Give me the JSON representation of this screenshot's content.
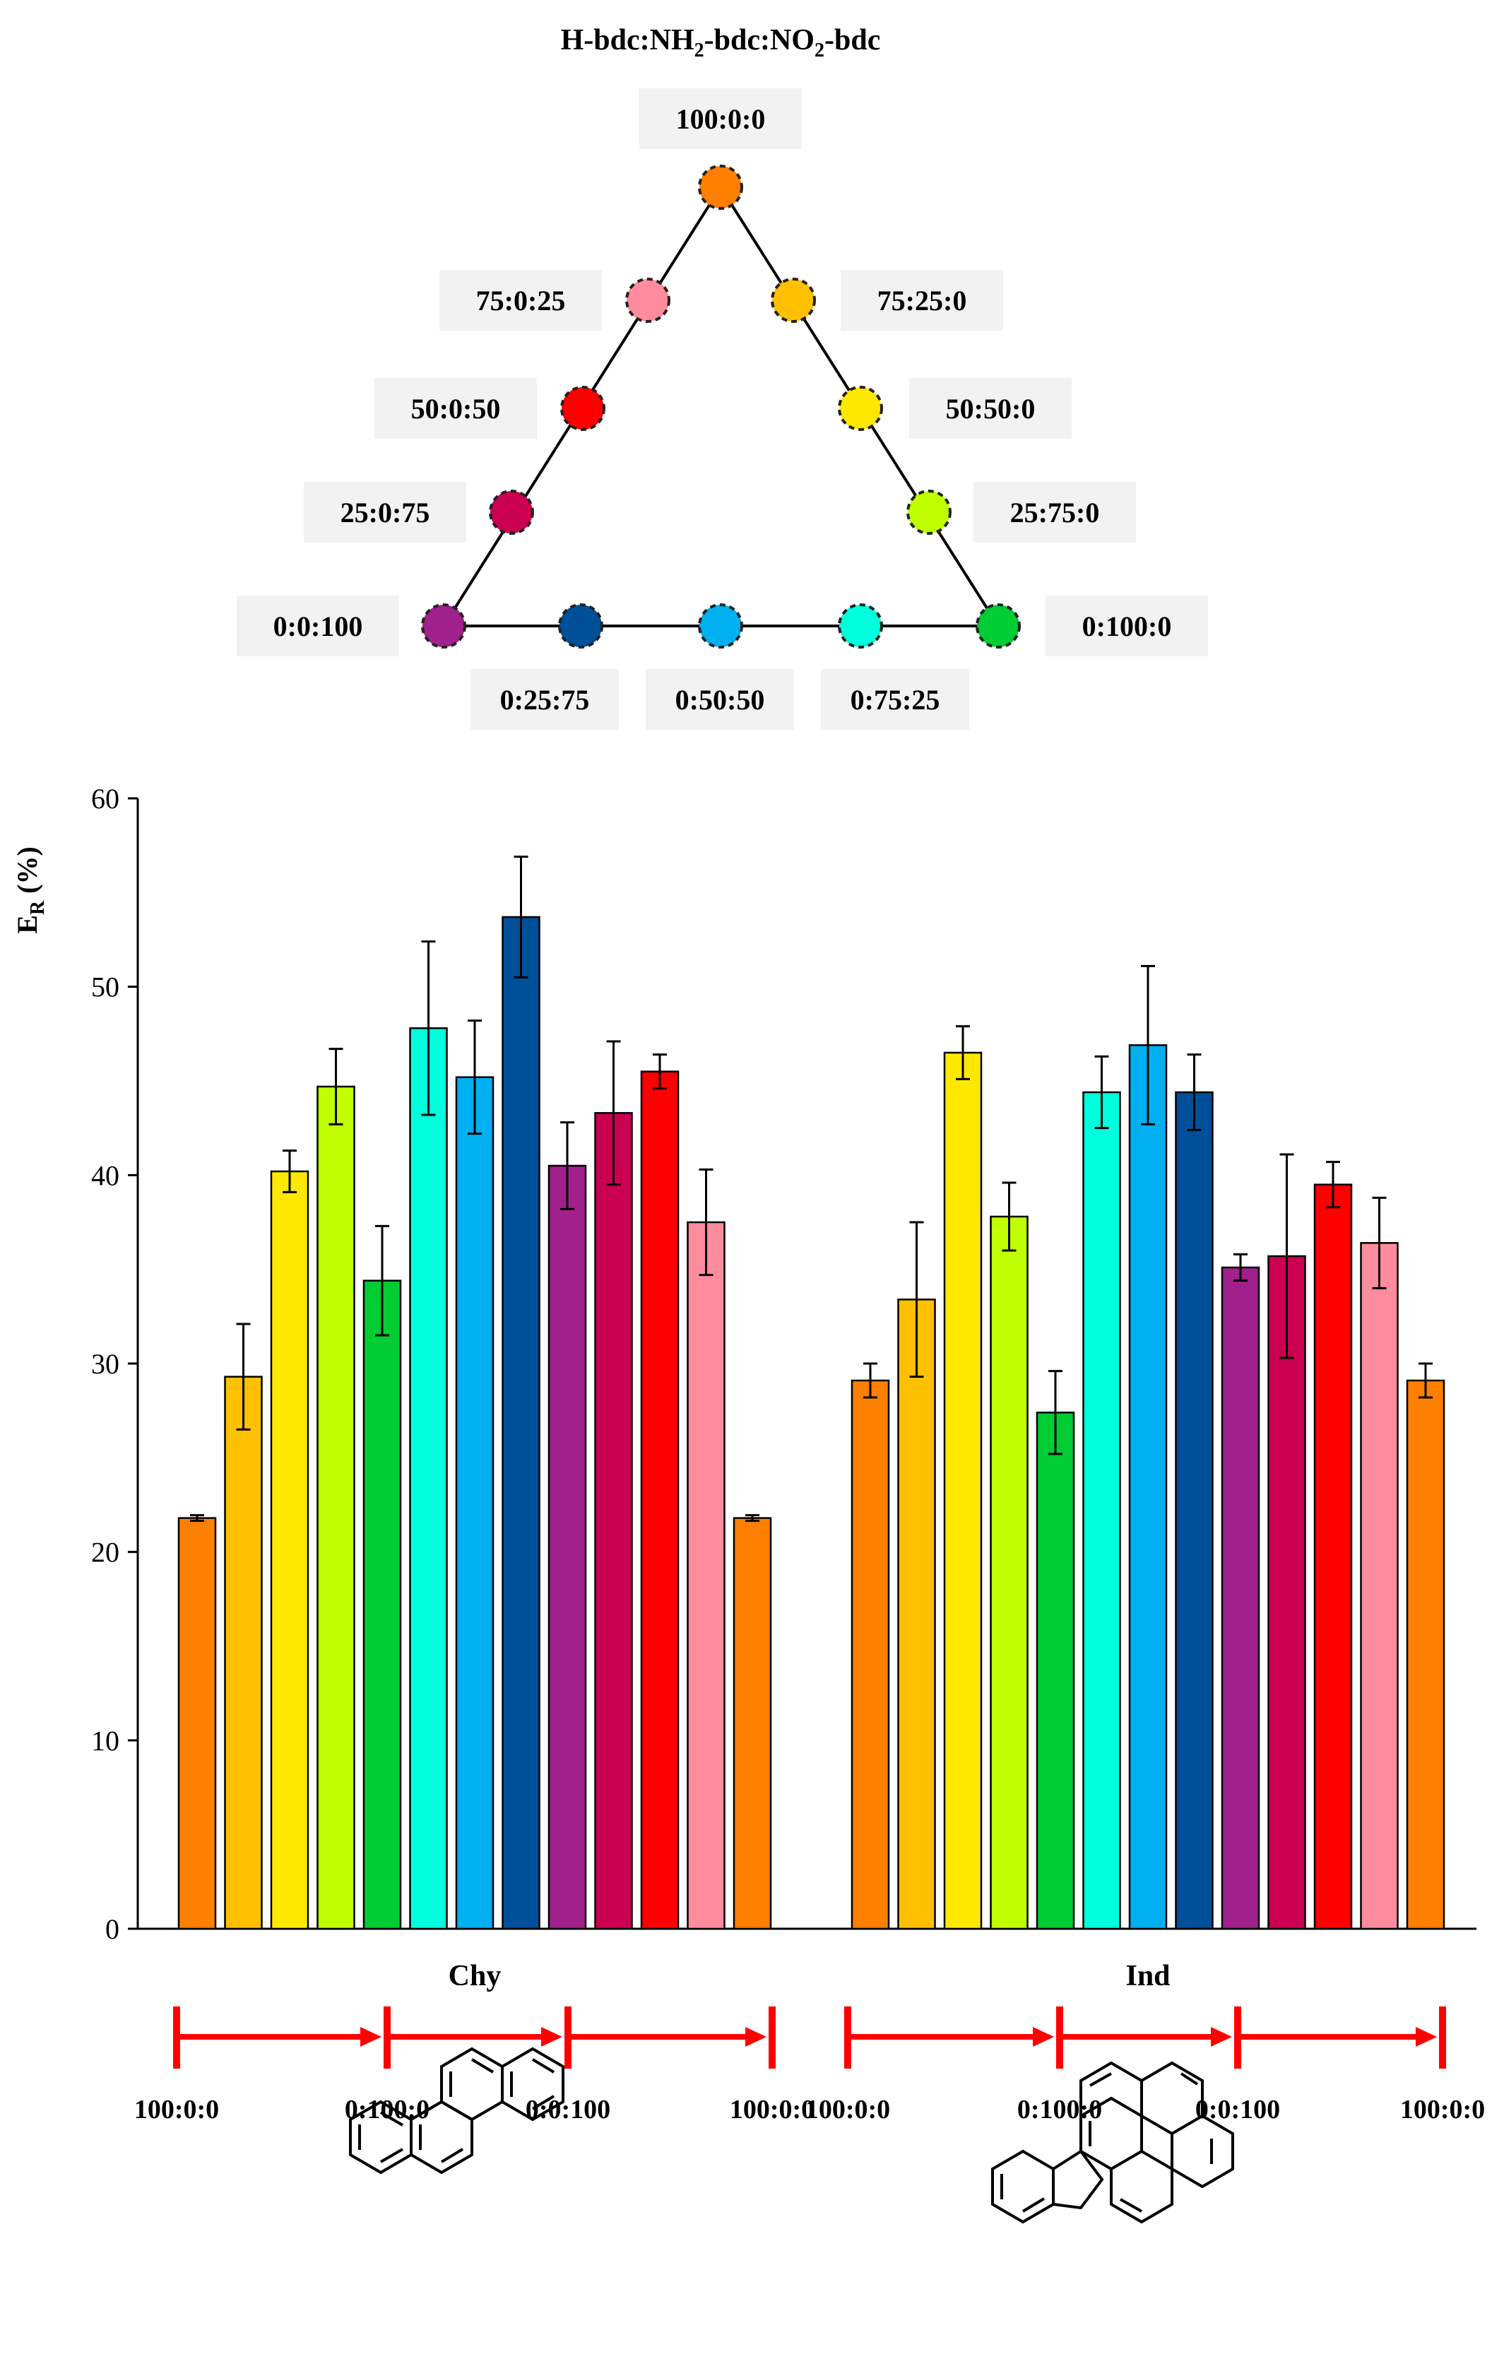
{
  "ternary": {
    "title": "H-bdc:NH₂-bdc:NO₂-bdc",
    "nodes": [
      {
        "label": "100:0:0",
        "color": "#FF7F00"
      },
      {
        "label": "75:25:0",
        "color": "#FFC000"
      },
      {
        "label": "50:50:0",
        "color": "#FFE800"
      },
      {
        "label": "25:75:0",
        "color": "#C0FF00"
      },
      {
        "label": "0:100:0",
        "color": "#00CC33"
      },
      {
        "label": "0:75:25",
        "color": "#00FFDD"
      },
      {
        "label": "0:50:50",
        "color": "#00B0F0"
      },
      {
        "label": "0:25:75",
        "color": "#005099"
      },
      {
        "label": "0:0:100",
        "color": "#A0208C"
      },
      {
        "label": "25:0:75",
        "color": "#CC0050"
      },
      {
        "label": "50:0:50",
        "color": "#FF0000"
      },
      {
        "label": "75:0:25",
        "color": "#FF8C9C"
      }
    ]
  },
  "chart_data": {
    "type": "bar",
    "ylabel_main": "E",
    "ylabel_sub": "R",
    "ylabel_unit": " (%)",
    "ylim": [
      0,
      60
    ],
    "yticks": [
      "0",
      "10",
      "20",
      "30",
      "40",
      "50",
      "60"
    ],
    "groups": [
      {
        "name": "Chy",
        "values": [
          21.8,
          29.3,
          40.2,
          44.7,
          34.4,
          47.8,
          45.2,
          53.7,
          40.5,
          43.3,
          45.5,
          37.5,
          21.8
        ],
        "errors": [
          0.15,
          2.8,
          1.1,
          2.0,
          2.9,
          4.6,
          3.0,
          3.2,
          2.3,
          3.8,
          0.9,
          2.8,
          0.15
        ]
      },
      {
        "name": "Ind",
        "values": [
          29.1,
          33.4,
          46.5,
          37.8,
          27.4,
          44.4,
          46.9,
          44.4,
          35.1,
          35.7,
          39.5,
          36.4,
          29.1
        ],
        "errors": [
          0.9,
          4.1,
          1.4,
          1.8,
          2.2,
          1.9,
          4.2,
          2.0,
          0.7,
          5.4,
          1.2,
          2.4,
          0.9
        ]
      }
    ],
    "bar_colors": [
      "#FF7F00",
      "#FFC000",
      "#FFE800",
      "#C0FF00",
      "#00CC33",
      "#00FFDD",
      "#00B0F0",
      "#005099",
      "#A0208C",
      "#CC0050",
      "#FF0000",
      "#FF8C9C",
      "#FF7F00"
    ],
    "arrow_labels": [
      "100:0:0",
      "0:100:0",
      "0:0:100",
      "100:0:0"
    ],
    "arrow_color": "#FF0000"
  }
}
